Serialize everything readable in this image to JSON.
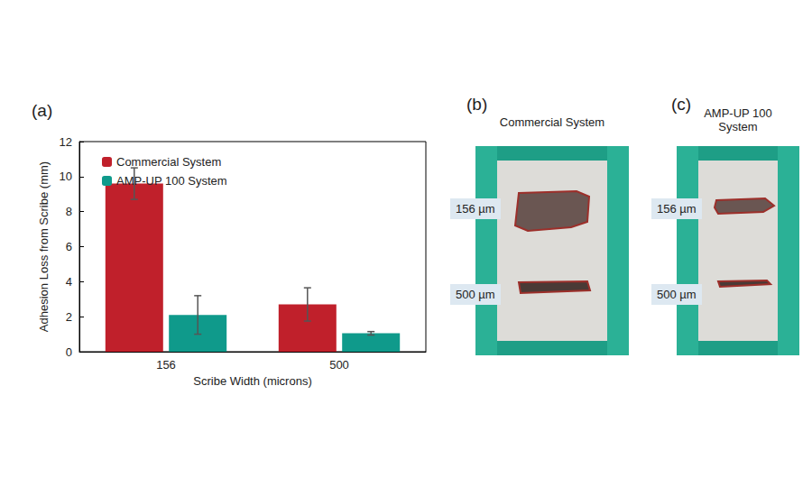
{
  "chart_data": {
    "type": "bar",
    "title": "(a)",
    "x_label": "Scribe Width (microns)",
    "y_label": "Adhesion Loss from Scribe (mm)",
    "categories": [
      "156",
      "500"
    ],
    "series": [
      {
        "name": "Commercial System",
        "color": "#c0202b",
        "values": [
          9.6,
          2.7
        ],
        "errors": [
          0.9,
          0.95
        ]
      },
      {
        "name": "AMP-UP 100 System",
        "color": "#0f9a8b",
        "values": [
          2.1,
          1.05
        ],
        "errors": [
          1.1,
          0.1
        ]
      }
    ],
    "ylim": [
      0,
      12
    ],
    "yticks": [
      0,
      2,
      4,
      6,
      8,
      10,
      12
    ],
    "grid": false,
    "legend": "upper left"
  },
  "photos": [
    {
      "label": "(b)",
      "title": "Commercial System",
      "scribes": [
        "156 µm",
        "500 µm"
      ]
    },
    {
      "label": "(c)",
      "title": "AMP-UP 100 System",
      "scribes": [
        "156 µm",
        "500 µm"
      ]
    }
  ]
}
